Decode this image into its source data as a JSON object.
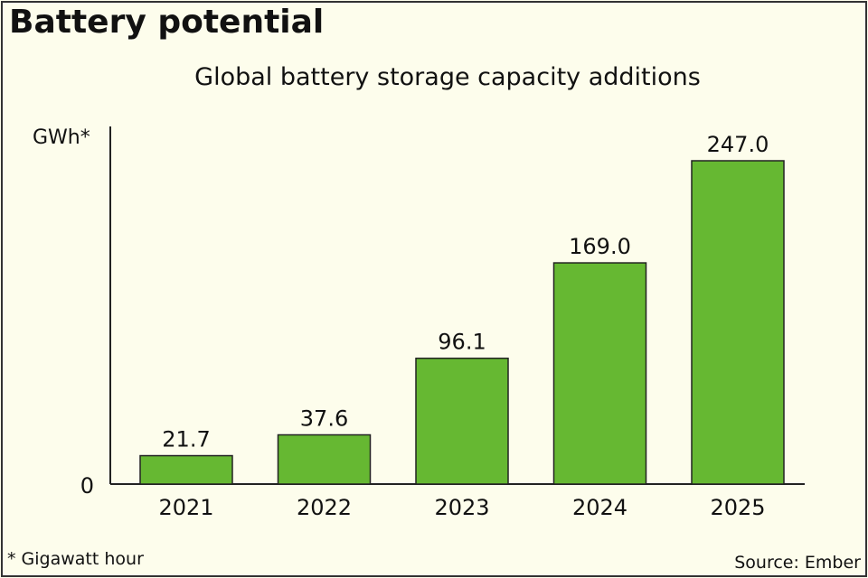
{
  "title": "Battery potential",
  "chart_data": {
    "type": "bar",
    "title": "Global battery storage capacity additions",
    "ylabel": "GWh*",
    "categories": [
      "2021",
      "2022",
      "2023",
      "2024",
      "2025"
    ],
    "values": [
      21.7,
      37.6,
      96.1,
      169.0,
      247.0
    ],
    "data_labels": [
      "21.7",
      "37.6",
      "96.1",
      "169.0",
      "247.0"
    ],
    "yticks": [
      "0"
    ],
    "ylim": [
      0,
      270
    ],
    "grid": false,
    "bar_color": "#66b832"
  },
  "footnote": "* Gigawatt hour",
  "source": "Source: Ember"
}
